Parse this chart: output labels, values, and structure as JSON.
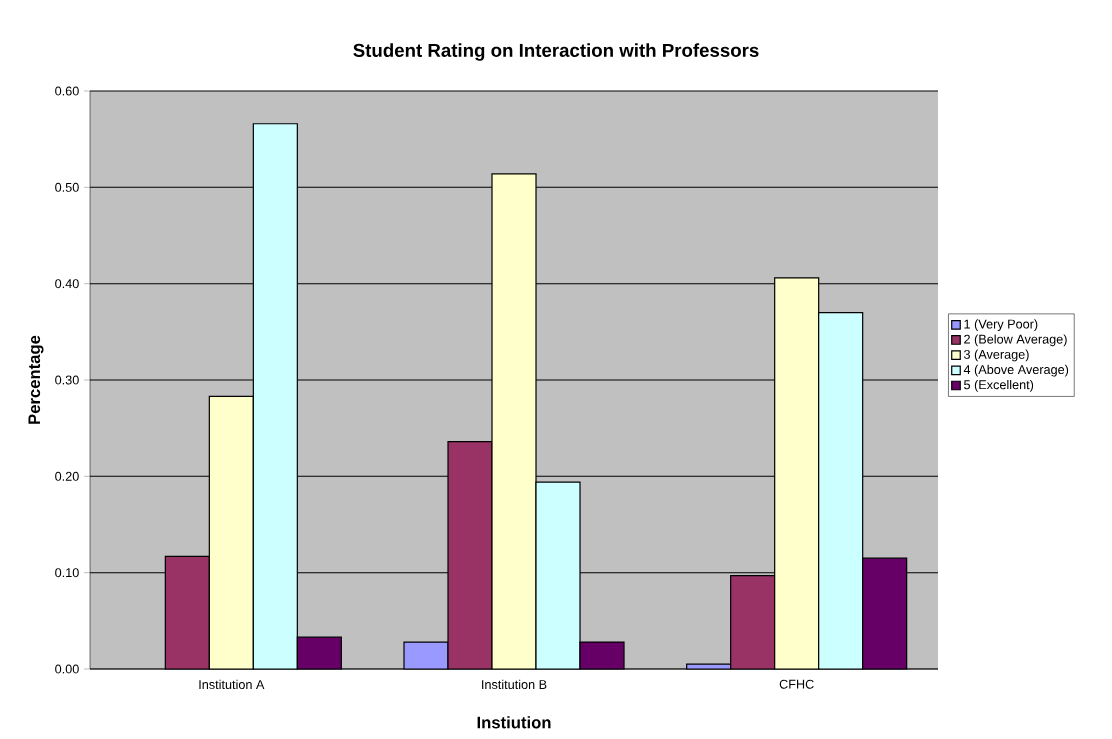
{
  "chart_data": {
    "type": "bar",
    "title": "Student Rating on Interaction with Professors",
    "xlabel": "Instiution",
    "ylabel": "Percentage",
    "categories": [
      "Institution A",
      "Institution B",
      "CFHC"
    ],
    "series": [
      {
        "name": "1 (Very Poor)",
        "color": "#9999ff",
        "values": [
          null,
          0.028,
          0.005
        ]
      },
      {
        "name": "2 (Below Average)",
        "color": "#993366",
        "values": [
          0.117,
          0.236,
          0.097
        ]
      },
      {
        "name": "3 (Average)",
        "color": "#ffffcc",
        "values": [
          0.283,
          0.514,
          0.406
        ]
      },
      {
        "name": "4 (Above Average)",
        "color": "#ccffff",
        "values": [
          0.566,
          0.194,
          0.37
        ]
      },
      {
        "name": "5 (Excellent)",
        "color": "#660066",
        "values": [
          0.033,
          0.028,
          0.115
        ]
      }
    ],
    "ylim": [
      0,
      0.6
    ],
    "yticks": [
      {
        "value": 0,
        "label": "0.00"
      },
      {
        "value": 0.1,
        "label": "0.10"
      },
      {
        "value": 0.2,
        "label": "0.20"
      },
      {
        "value": 0.3,
        "label": "0.30"
      },
      {
        "value": 0.4,
        "label": "0.40"
      },
      {
        "value": 0.5,
        "label": "0.50"
      },
      {
        "value": 0.6,
        "label": "0.60"
      }
    ],
    "grid": "y",
    "legend": "right"
  }
}
